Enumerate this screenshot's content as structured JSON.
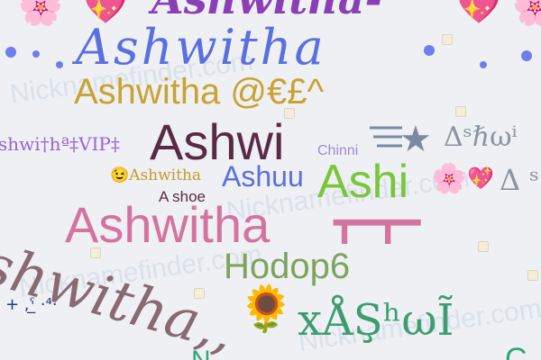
{
  "watermark": "Nicknamefinder.com",
  "words": {
    "top_ashwitha": "Ashwitha-",
    "blue_ashwitha": "Ashwitha",
    "gold_line": "Ashwitha @€£^",
    "ashwi": "Ashwi",
    "vip_line": "shwi†hª‡VIP‡",
    "chinni": "Chinni",
    "sigma_line": "Δˢℏωⁱ",
    "emoji_line": "Ashwitha",
    "ashuu": "Ashuu",
    "ashi": "Ashi",
    "a_shoe": "A shoe",
    "big_pink": "Ashwitha",
    "tee_line": "┳━┳━",
    "hodop": "Hodop6",
    "cursive_gray": "shwitha,,",
    "green_bottom": "xÅŞʰωĨ",
    "tiny_bits": "+ ,ˁ̲  ·⁴·"
  },
  "emoji": {
    "flower": "🌸",
    "heart": "💖",
    "sunflower": "🌻",
    "wink": "😉",
    "star": "★"
  },
  "colors": {
    "background": "#eef0f3",
    "purple": "#8a3fb7",
    "blue": "#5a6fe0",
    "gold": "#c9a233",
    "maroon": "#5a2a45",
    "pink": "#d4739f",
    "lightpurple": "#a28ad8",
    "green": "#79c63b",
    "olive_green": "#7da35f",
    "teal": "#3d9d72",
    "mauve": "#8a6a72"
  }
}
